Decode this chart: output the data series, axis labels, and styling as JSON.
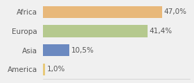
{
  "categories": [
    "America",
    "Asia",
    "Europa",
    "Africa"
  ],
  "values": [
    1.0,
    10.5,
    41.4,
    47.0
  ],
  "labels": [
    "1,0%",
    "10,5%",
    "41,4%",
    "47,0%"
  ],
  "bar_colors": [
    "#e8c97a",
    "#6b89c0",
    "#b5c98e",
    "#e8b87a"
  ],
  "background_color": "#f0f0f0",
  "xlim": [
    0,
    58
  ],
  "bar_height": 0.62,
  "label_fontsize": 7.5,
  "tick_fontsize": 7.5,
  "label_color": "#555555",
  "tick_color": "#555555"
}
